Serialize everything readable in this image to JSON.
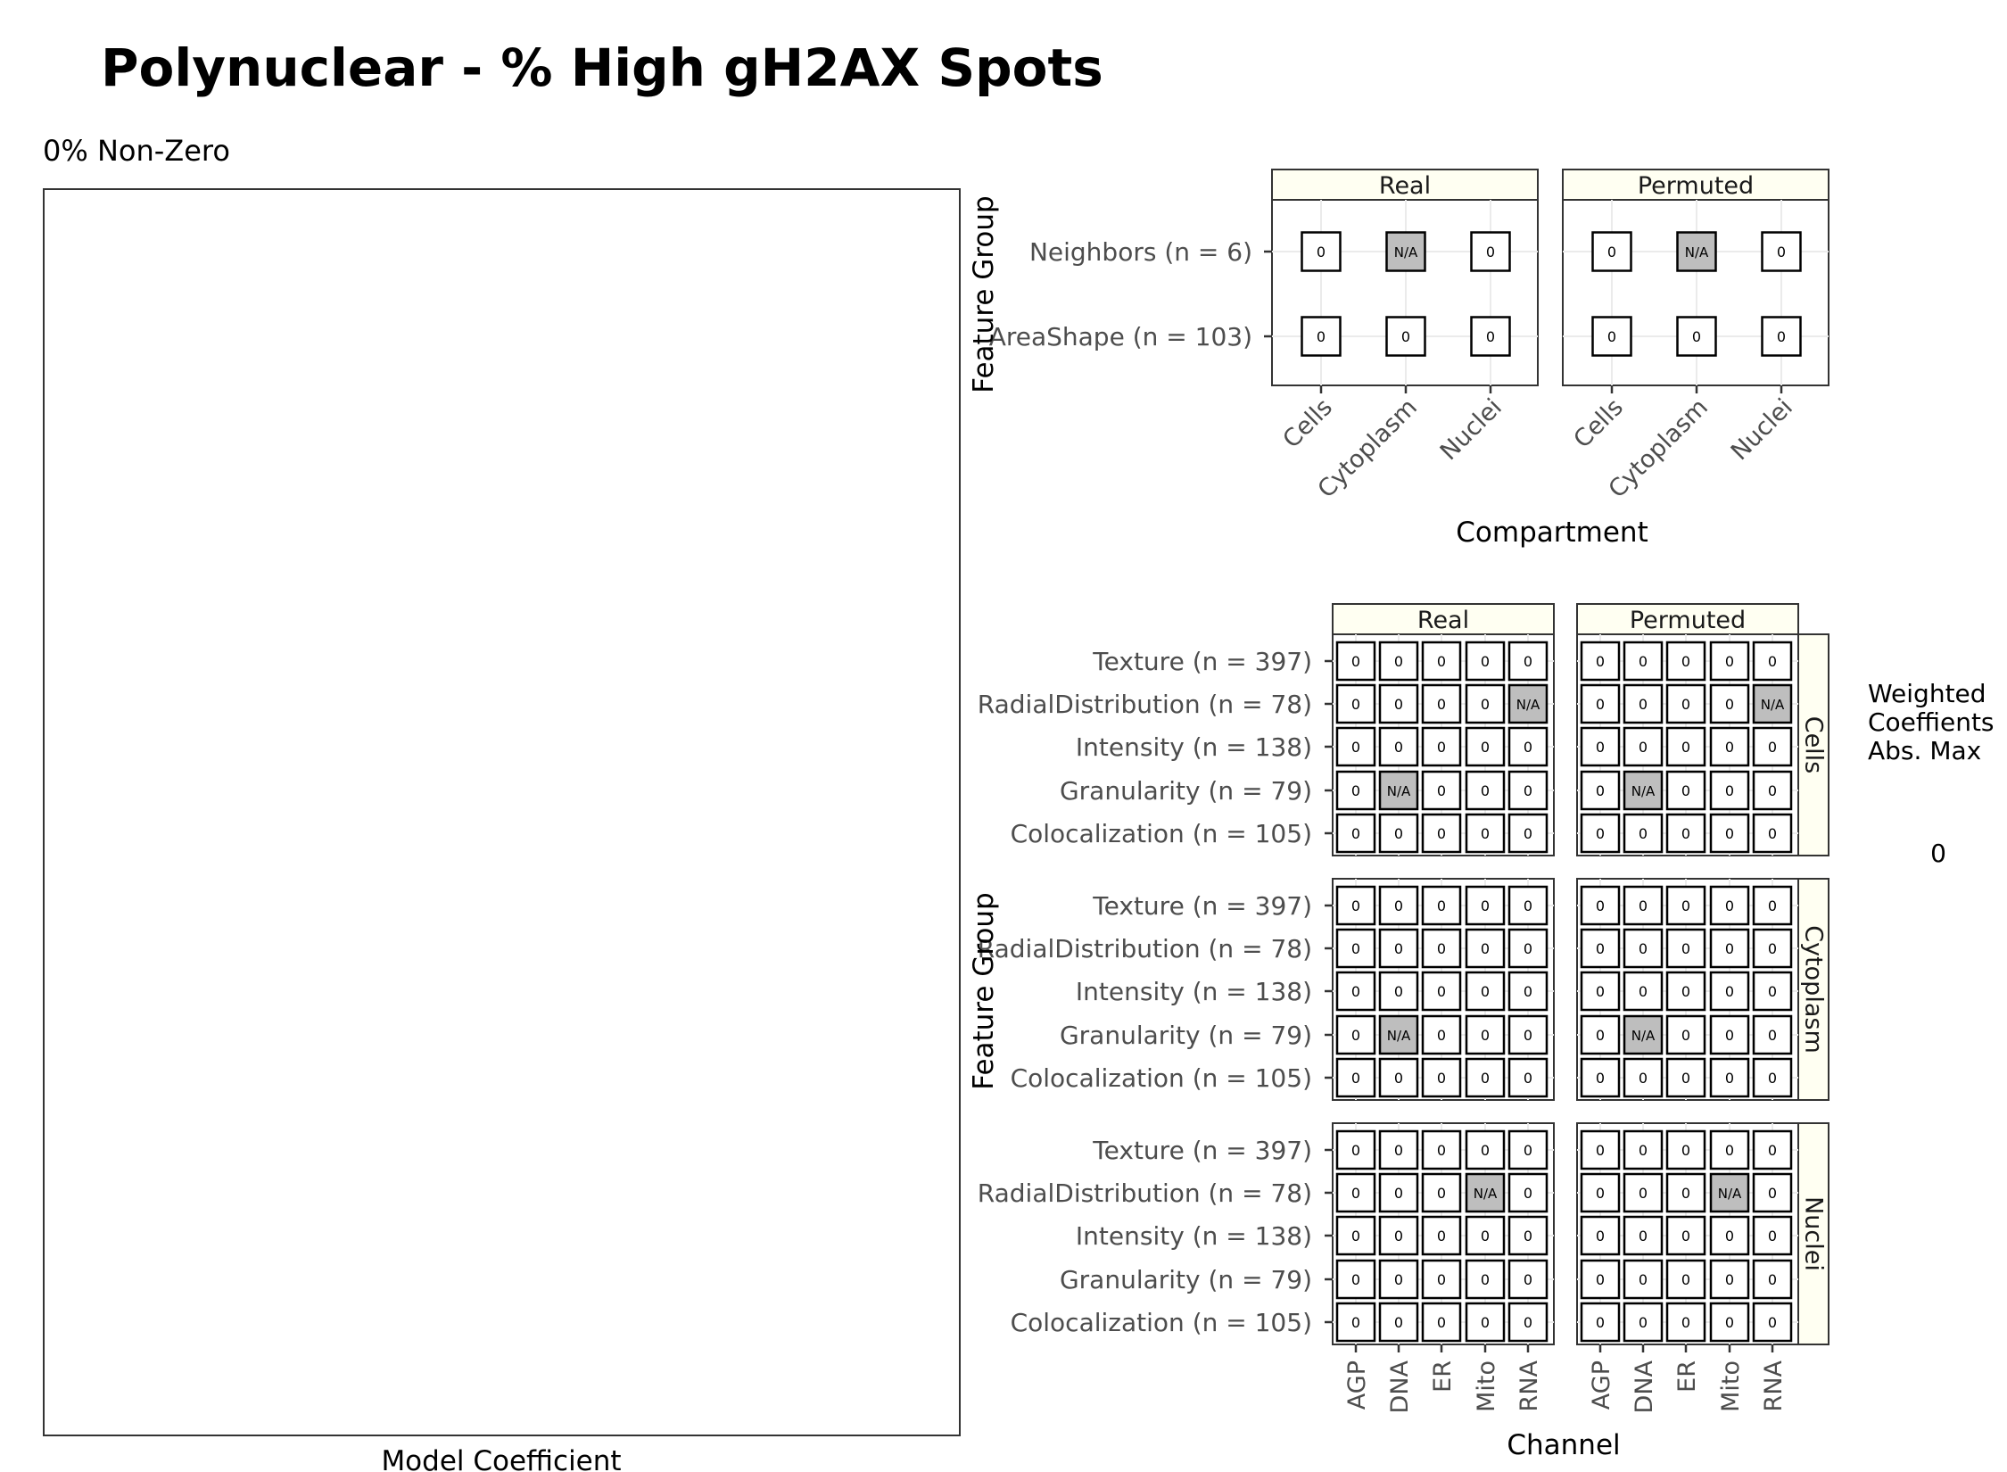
{
  "title": "Polynuclear - % High gH2AX Spots",
  "subtitle": "0% Non-Zero",
  "colors": {
    "cell_fill": "#ffffff",
    "na_fill": "#bebebe",
    "strip_fill": "#fffff2",
    "panel_border": "#333333"
  },
  "chart_data": [
    {
      "type": "bar",
      "xlabel": "Model Coefficient",
      "ylabel": "",
      "values": []
    },
    {
      "type": "heatmap",
      "xlabel": "Compartment",
      "ylabel": "Feature Group",
      "facets": [
        "Real",
        "Permuted"
      ],
      "x": [
        "Cells",
        "Cytoplasm",
        "Nuclei"
      ],
      "y": [
        "AreaShape (n = 103)",
        "Neighbors (n = 6)"
      ],
      "values": {
        "Real": [
          [
            "0",
            "0",
            "0"
          ],
          [
            "0",
            "N/A",
            "0"
          ]
        ],
        "Permuted": [
          [
            "0",
            "0",
            "0"
          ],
          [
            "0",
            "N/A",
            "0"
          ]
        ]
      }
    },
    {
      "type": "heatmap",
      "xlabel": "Channel",
      "ylabel": "Feature Group",
      "col_facets": [
        "Real",
        "Permuted"
      ],
      "row_facets": [
        "Cells",
        "Cytoplasm",
        "Nuclei"
      ],
      "x": [
        "AGP",
        "DNA",
        "ER",
        "Mito",
        "RNA"
      ],
      "y": [
        "Colocalization (n = 105)",
        "Granularity (n = 79)",
        "Intensity (n = 138)",
        "RadialDistribution (n = 78)",
        "Texture (n = 397)"
      ],
      "values": {
        "Cells": {
          "Real": [
            [
              "0",
              "0",
              "0",
              "0",
              "0"
            ],
            [
              "0",
              "N/A",
              "0",
              "0",
              "0"
            ],
            [
              "0",
              "0",
              "0",
              "0",
              "0"
            ],
            [
              "0",
              "0",
              "0",
              "0",
              "N/A"
            ],
            [
              "0",
              "0",
              "0",
              "0",
              "0"
            ]
          ],
          "Permuted": [
            [
              "0",
              "0",
              "0",
              "0",
              "0"
            ],
            [
              "0",
              "N/A",
              "0",
              "0",
              "0"
            ],
            [
              "0",
              "0",
              "0",
              "0",
              "0"
            ],
            [
              "0",
              "0",
              "0",
              "0",
              "N/A"
            ],
            [
              "0",
              "0",
              "0",
              "0",
              "0"
            ]
          ]
        },
        "Cytoplasm": {
          "Real": [
            [
              "0",
              "0",
              "0",
              "0",
              "0"
            ],
            [
              "0",
              "N/A",
              "0",
              "0",
              "0"
            ],
            [
              "0",
              "0",
              "0",
              "0",
              "0"
            ],
            [
              "0",
              "0",
              "0",
              "0",
              "0"
            ],
            [
              "0",
              "0",
              "0",
              "0",
              "0"
            ]
          ],
          "Permuted": [
            [
              "0",
              "0",
              "0",
              "0",
              "0"
            ],
            [
              "0",
              "N/A",
              "0",
              "0",
              "0"
            ],
            [
              "0",
              "0",
              "0",
              "0",
              "0"
            ],
            [
              "0",
              "0",
              "0",
              "0",
              "0"
            ],
            [
              "0",
              "0",
              "0",
              "0",
              "0"
            ]
          ]
        },
        "Nuclei": {
          "Real": [
            [
              "0",
              "0",
              "0",
              "0",
              "0"
            ],
            [
              "0",
              "0",
              "0",
              "0",
              "0"
            ],
            [
              "0",
              "0",
              "0",
              "0",
              "0"
            ],
            [
              "0",
              "0",
              "0",
              "N/A",
              "0"
            ],
            [
              "0",
              "0",
              "0",
              "0",
              "0"
            ]
          ],
          "Permuted": [
            [
              "0",
              "0",
              "0",
              "0",
              "0"
            ],
            [
              "0",
              "0",
              "0",
              "0",
              "0"
            ],
            [
              "0",
              "0",
              "0",
              "0",
              "0"
            ],
            [
              "0",
              "0",
              "0",
              "N/A",
              "0"
            ],
            [
              "0",
              "0",
              "0",
              "0",
              "0"
            ]
          ]
        }
      },
      "legend": {
        "title": "Weighted Coeffients Abs. Max",
        "labels": [
          "0"
        ],
        "position": "right"
      }
    }
  ]
}
